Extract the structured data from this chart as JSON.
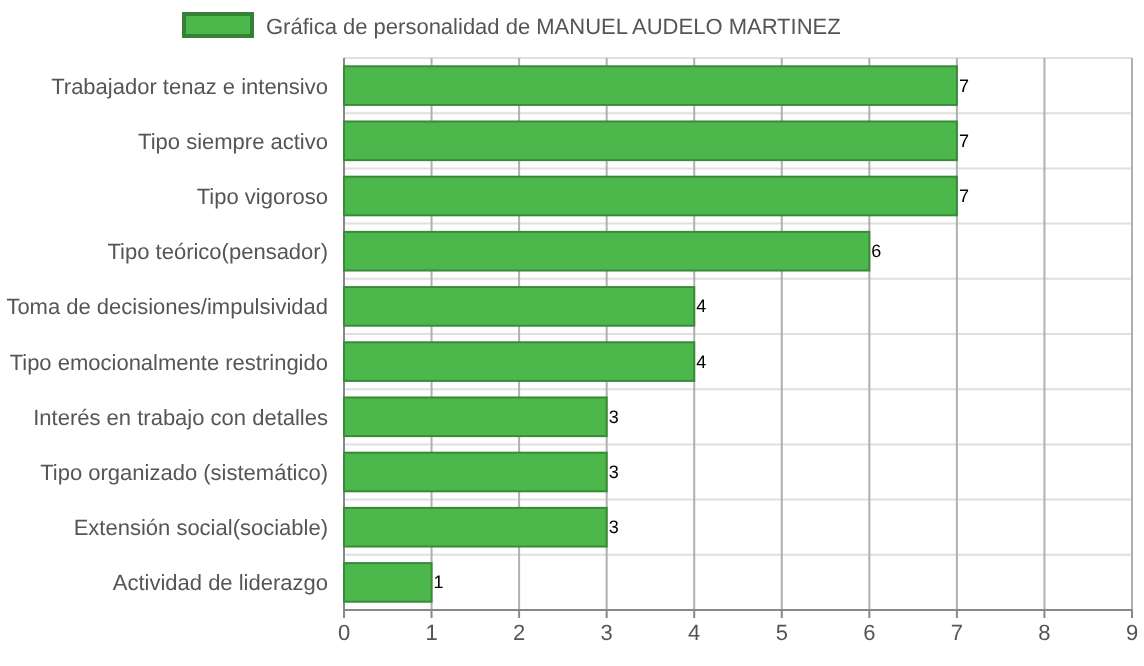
{
  "chart_data": {
    "type": "bar",
    "orientation": "horizontal",
    "categories": [
      "Trabajador tenaz e intensivo",
      "Tipo siempre activo",
      "Tipo vigoroso",
      "Tipo teórico(pensador)",
      "Toma de decisiones/impulsividad",
      "Tipo emocionalmente restringido",
      "Interés en trabajo con detalles",
      "Tipo organizado (sistemático)",
      "Extensión social(sociable)",
      "Actividad de liderazgo"
    ],
    "series": [
      {
        "name": "Gráfica de personalidad de MANUEL AUDELO MARTINEZ",
        "color": "#4cb84c",
        "values": [
          7,
          7,
          7,
          6,
          4,
          4,
          3,
          3,
          3,
          1
        ]
      }
    ],
    "xlim": [
      0,
      9
    ],
    "xticks": [
      0,
      1,
      2,
      3,
      4,
      5,
      6,
      7,
      8,
      9
    ],
    "grid": true,
    "legend": "top",
    "data_labels": true
  }
}
